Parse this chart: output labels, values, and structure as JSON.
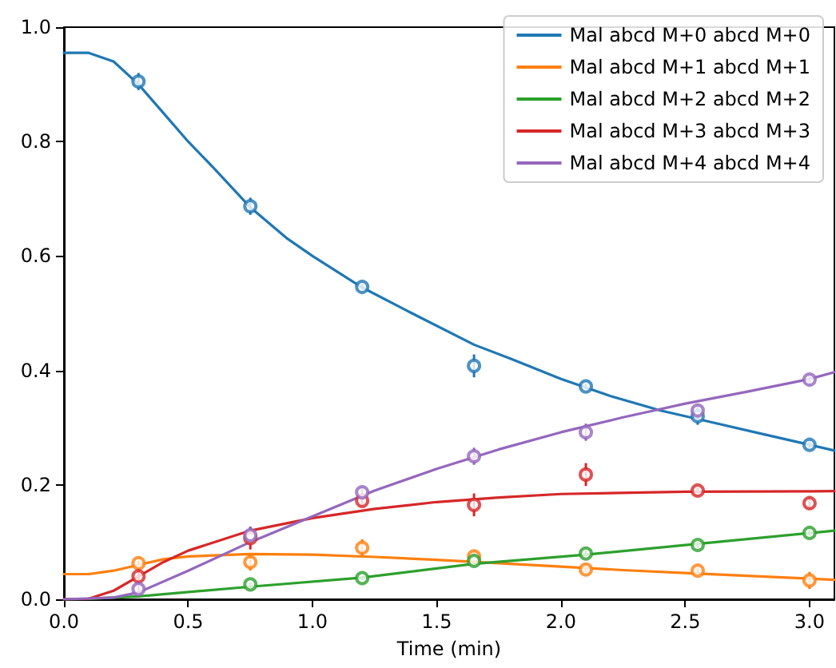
{
  "chart_data": {
    "type": "line",
    "xlabel": "Time (min)",
    "xlim": [
      0,
      3.1
    ],
    "ylim": [
      0,
      1.0
    ],
    "xticks": [
      {
        "value": 0,
        "label": "0.0"
      },
      {
        "value": 0.5,
        "label": "0.5"
      },
      {
        "value": 1.0,
        "label": "1.0"
      },
      {
        "value": 1.5,
        "label": "1.5"
      },
      {
        "value": 2.0,
        "label": "2.0"
      },
      {
        "value": 2.5,
        "label": "2.5"
      },
      {
        "value": 3.0,
        "label": "3.0"
      }
    ],
    "yticks": [
      {
        "value": 0,
        "label": "0.0"
      },
      {
        "value": 0.2,
        "label": "0.2"
      },
      {
        "value": 0.4,
        "label": "0.4"
      },
      {
        "value": 0.6,
        "label": "0.6"
      },
      {
        "value": 0.8,
        "label": "0.8"
      },
      {
        "value": 1.0,
        "label": "1.0"
      }
    ],
    "grid": false,
    "legend": "top right",
    "series": [
      {
        "name": "Mal abcd M+0 abcd M+0",
        "marker": "none",
        "color": "#1f77b4",
        "x": [
          0,
          0.1,
          0.2,
          0.3,
          0.4,
          0.5,
          0.6,
          0.75,
          0.9,
          1.0,
          1.2,
          1.4,
          1.65,
          1.8,
          2.0,
          2.2,
          2.4,
          2.6,
          2.8,
          3.0,
          3.1
        ],
        "values": [
          0.955,
          0.955,
          0.94,
          0.9,
          0.85,
          0.8,
          0.755,
          0.685,
          0.63,
          0.6,
          0.545,
          0.5,
          0.445,
          0.42,
          0.385,
          0.355,
          0.33,
          0.31,
          0.29,
          0.27,
          0.26
        ]
      },
      {
        "name": "Mal abcd M+1 abcd M+1",
        "marker": "none",
        "color": "#ff7f0e",
        "x": [
          0,
          0.1,
          0.2,
          0.3,
          0.4,
          0.5,
          0.75,
          1.0,
          1.25,
          1.5,
          1.75,
          2.0,
          2.25,
          2.5,
          2.75,
          3.1
        ],
        "values": [
          0.044,
          0.044,
          0.05,
          0.06,
          0.07,
          0.075,
          0.079,
          0.078,
          0.074,
          0.069,
          0.063,
          0.057,
          0.051,
          0.046,
          0.041,
          0.034
        ]
      },
      {
        "name": "Mal abcd M+2 abcd M+2",
        "marker": "none",
        "color": "#2ca02c",
        "x": [
          0,
          0.1,
          0.3,
          0.75,
          1.2,
          1.65,
          2.1,
          2.55,
          3.1
        ],
        "values": [
          0,
          0.001,
          0.005,
          0.022,
          0.038,
          0.062,
          0.078,
          0.097,
          0.12
        ]
      },
      {
        "name": "Mal abcd M+3 abcd M+3",
        "marker": "none",
        "color": "#d62728",
        "x": [
          0,
          0.1,
          0.2,
          0.3,
          0.4,
          0.5,
          0.75,
          1.0,
          1.25,
          1.5,
          1.75,
          2.0,
          2.5,
          3.1
        ],
        "values": [
          0,
          0.001,
          0.015,
          0.04,
          0.065,
          0.085,
          0.12,
          0.142,
          0.158,
          0.17,
          0.178,
          0.184,
          0.188,
          0.189
        ]
      },
      {
        "name": "Mal abcd M+4 abcd M+4",
        "marker": "none",
        "color": "#9467bd",
        "x": [
          0,
          0.2,
          0.3,
          0.5,
          0.75,
          1.0,
          1.25,
          1.5,
          1.75,
          2.0,
          2.25,
          2.5,
          2.75,
          3.0,
          3.1
        ],
        "values": [
          0,
          0.003,
          0.012,
          0.05,
          0.1,
          0.145,
          0.19,
          0.228,
          0.262,
          0.292,
          0.318,
          0.342,
          0.363,
          0.385,
          0.397
        ]
      },
      {
        "type": "scatter",
        "marker": "circle",
        "color": "#1f77b4",
        "x": [
          0.3,
          0.75,
          1.2,
          1.65,
          2.1,
          2.55,
          3.0
        ],
        "values": [
          0.905,
          0.687,
          0.546,
          0.408,
          0.372,
          0.32,
          0.27
        ],
        "errors": [
          0.015,
          0.015,
          0.005,
          0.02,
          0.005,
          0.015,
          0.006
        ]
      },
      {
        "type": "scatter",
        "marker": "circle",
        "color": "#ff7f0e",
        "x": [
          0.3,
          0.75,
          1.2,
          1.65,
          2.1,
          2.55,
          3.0
        ],
        "values": [
          0.063,
          0.065,
          0.09,
          0.075,
          0.052,
          0.05,
          0.033
        ],
        "errors": [
          0.005,
          0.015,
          0.015,
          0.01,
          0.005,
          0.005,
          0.015
        ]
      },
      {
        "type": "scatter",
        "marker": "circle",
        "color": "#2ca02c",
        "x": [
          0.75,
          1.2,
          1.65,
          2.1,
          2.55,
          3.0
        ],
        "values": [
          0.026,
          0.037,
          0.067,
          0.08,
          0.095,
          0.116
        ],
        "errors": [
          0.004,
          0.004,
          0.005,
          0.005,
          0.005,
          0.005
        ]
      },
      {
        "type": "scatter",
        "marker": "circle",
        "color": "#d62728",
        "x": [
          0.3,
          0.75,
          1.2,
          1.65,
          2.1,
          2.55,
          3.0
        ],
        "values": [
          0.04,
          0.107,
          0.172,
          0.165,
          0.218,
          0.19,
          0.168
        ],
        "errors": [
          0.015,
          0.02,
          0.01,
          0.02,
          0.02,
          0.005,
          0.01
        ]
      },
      {
        "type": "scatter",
        "marker": "circle",
        "color": "#9467bd",
        "x": [
          0.3,
          0.75,
          1.2,
          1.65,
          2.1,
          2.55,
          3.0
        ],
        "values": [
          0.018,
          0.112,
          0.187,
          0.25,
          0.292,
          0.33,
          0.384
        ],
        "errors": [
          0.008,
          0.015,
          0.01,
          0.015,
          0.015,
          0.01,
          0.008
        ]
      }
    ]
  }
}
